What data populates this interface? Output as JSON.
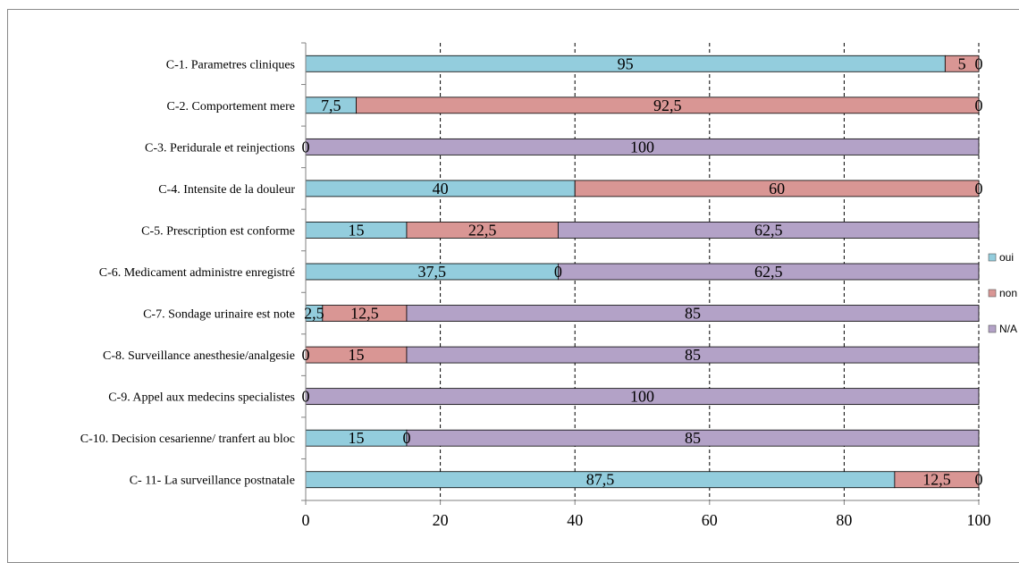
{
  "chart_data": {
    "type": "bar",
    "orientation": "horizontal",
    "stacked": true,
    "categories": [
      "C-1. Parametres cliniques",
      "C-2. Comportement mere",
      "C-3. Peridurale et reinjections",
      "C-4. Intensite de la douleur",
      "C-5. Prescription est conforme",
      "C-6. Medicament administre enregistré",
      "C-7. Sondage urinaire est note",
      "C-8. Surveillance anesthesie/analgesie",
      "C-9. Appel aux medecins specialistes",
      "C-10. Decision cesarienne/ tranfert au bloc",
      "C- 11- La surveillance postnatale"
    ],
    "series": [
      {
        "name": "oui",
        "color": "#93CDDD",
        "values": [
          95,
          7.5,
          0,
          40,
          15,
          37.5,
          2.5,
          0,
          0,
          15,
          87.5
        ],
        "labels": [
          "95",
          "7,5",
          "0",
          "40",
          "15",
          "37,5",
          "2,5",
          "0",
          "0",
          "15",
          "87,5"
        ]
      },
      {
        "name": "non",
        "color": "#D99694",
        "values": [
          5,
          92.5,
          0,
          60,
          22.5,
          0,
          12.5,
          15,
          0,
          0,
          12.5
        ],
        "labels": [
          "5",
          "92,5",
          "",
          "60",
          "22,5",
          "0",
          "12,5",
          "15",
          "",
          "0",
          "12,5"
        ]
      },
      {
        "name": "N/A",
        "color": "#B3A2C7",
        "values": [
          0,
          0,
          100,
          0,
          62.5,
          62.5,
          85,
          85,
          100,
          85,
          0
        ],
        "labels": [
          "0",
          "0",
          "100",
          "0",
          "62,5",
          "62,5",
          "85",
          "85",
          "100",
          "85",
          "0"
        ]
      }
    ],
    "xlim": [
      0,
      100
    ],
    "x_ticks": [
      "0",
      "20",
      "40",
      "60",
      "80",
      "100"
    ],
    "grid": "vertical dashed",
    "legend_position": "right",
    "title": "",
    "xlabel": "",
    "ylabel": ""
  }
}
